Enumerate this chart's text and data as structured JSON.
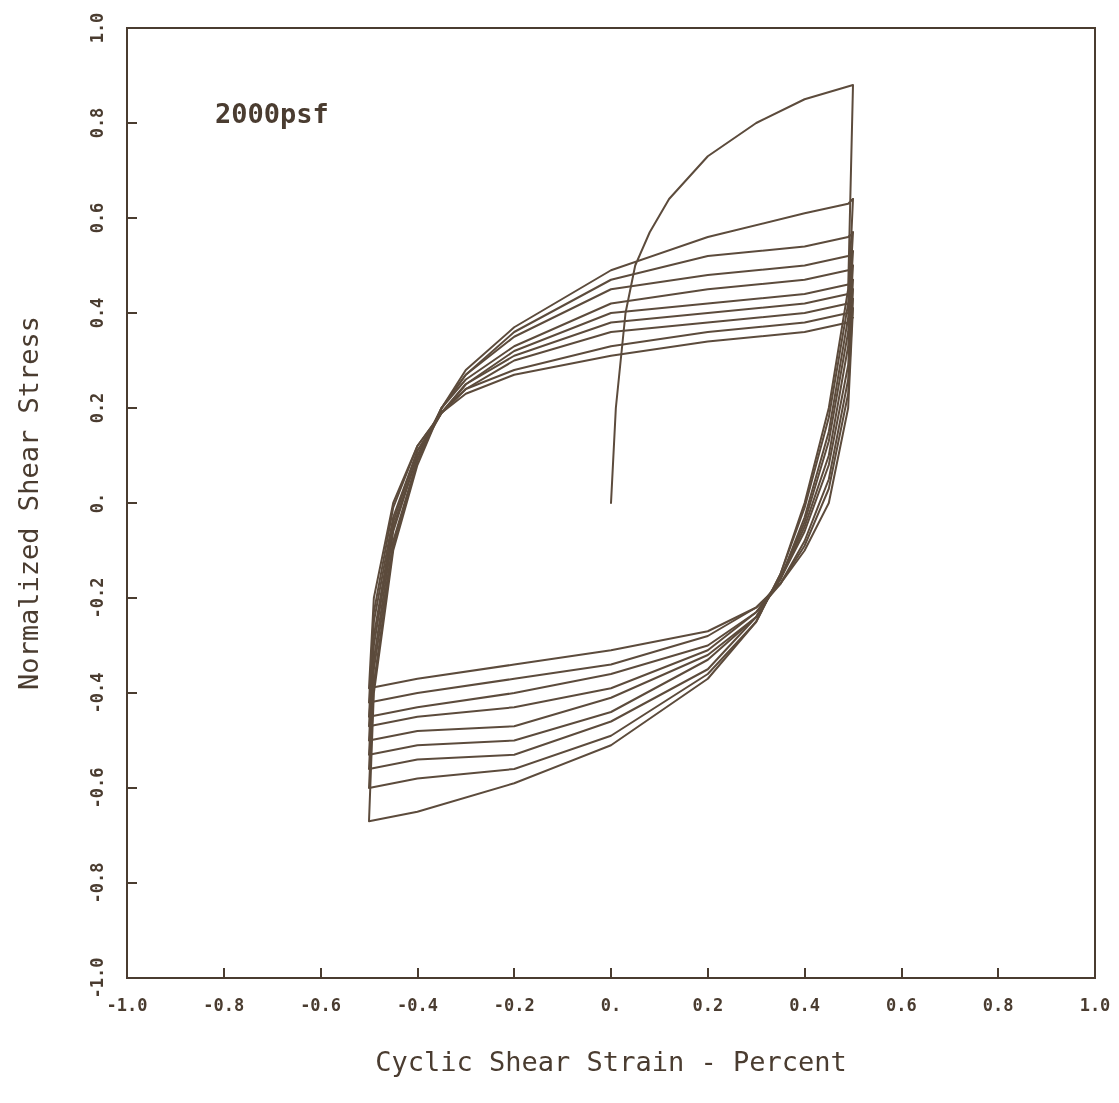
{
  "chart_data": {
    "type": "line",
    "xlabel": "Cyclic Shear Strain - Percent",
    "ylabel": "Normalized Shear Stress",
    "annotations": [
      "2000psf"
    ],
    "xlim": [
      -1,
      1
    ],
    "ylim": [
      -1,
      1
    ],
    "xticks": [
      {
        "value": -1,
        "label": "-1.0"
      },
      {
        "value": -0.8,
        "label": "-0.8"
      },
      {
        "value": -0.6,
        "label": "-0.6"
      },
      {
        "value": -0.4,
        "label": "-0.4"
      },
      {
        "value": -0.2,
        "label": "-0.2"
      },
      {
        "value": 0,
        "label": "0."
      },
      {
        "value": 0.2,
        "label": "0.2"
      },
      {
        "value": 0.4,
        "label": "0.4"
      },
      {
        "value": 0.6,
        "label": "0.6"
      },
      {
        "value": 0.8,
        "label": "0.8"
      },
      {
        "value": 1,
        "label": "1.0"
      }
    ],
    "yticks": [
      {
        "value": -1,
        "label": "-1.0"
      },
      {
        "value": -0.8,
        "label": "-0.8"
      },
      {
        "value": -0.6,
        "label": "-0.6"
      },
      {
        "value": -0.4,
        "label": "-0.4"
      },
      {
        "value": -0.2,
        "label": "-0.2"
      },
      {
        "value": 0,
        "label": "0."
      },
      {
        "value": 0.2,
        "label": "0.2"
      },
      {
        "value": 0.4,
        "label": "0.4"
      },
      {
        "value": 0.6,
        "label": "0.6"
      },
      {
        "value": 0.8,
        "label": "0.8"
      },
      {
        "value": 1,
        "label": "1.0"
      }
    ],
    "grid": false,
    "series": [
      {
        "color": "#5c4b3c",
        "x": [
          0,
          0.005,
          0.01,
          0.02,
          0.03,
          0.05,
          0.08,
          0.12,
          0.2,
          0.3,
          0.4,
          0.5,
          0.49,
          0.45,
          0.4,
          0.35,
          0.3,
          0.2,
          0,
          -0.2,
          -0.4,
          -0.5,
          -0.49,
          -0.45,
          -0.4,
          -0.35,
          -0.3,
          -0.2,
          0,
          0.2,
          0.4,
          0.49,
          0.5
        ],
        "values": [
          0,
          0.1,
          0.2,
          0.3,
          0.4,
          0.5,
          0.57,
          0.64,
          0.73,
          0.8,
          0.85,
          0.88,
          0.45,
          0.2,
          0,
          -0.15,
          -0.25,
          -0.37,
          -0.51,
          -0.59,
          -0.65,
          -0.67,
          -0.4,
          -0.1,
          0.08,
          0.2,
          0.28,
          0.37,
          0.49,
          0.56,
          0.61,
          0.63,
          0.64
        ]
      },
      {
        "color": "#5c4b3c",
        "x": [
          0.5,
          0.49,
          0.45,
          0.4,
          0.35,
          0.3,
          0.2,
          0,
          -0.2,
          -0.4,
          -0.5,
          -0.49,
          -0.45,
          -0.4,
          -0.35,
          -0.3,
          -0.2,
          0,
          0.2,
          0.4,
          0.49,
          0.5
        ],
        "values": [
          0.64,
          0.42,
          0.18,
          -0.01,
          -0.15,
          -0.25,
          -0.36,
          -0.49,
          -0.56,
          -0.58,
          -0.6,
          -0.38,
          -0.09,
          0.09,
          0.2,
          0.27,
          0.36,
          0.47,
          0.52,
          0.54,
          0.56,
          0.57
        ]
      },
      {
        "color": "#5c4b3c",
        "x": [
          0.5,
          0.49,
          0.45,
          0.4,
          0.35,
          0.3,
          0.2,
          0,
          -0.2,
          -0.4,
          -0.5,
          -0.49,
          -0.45,
          -0.4,
          -0.35,
          -0.3,
          -0.2,
          0,
          0.2,
          0.4,
          0.49,
          0.5
        ],
        "values": [
          0.57,
          0.39,
          0.15,
          -0.03,
          -0.16,
          -0.24,
          -0.35,
          -0.46,
          -0.53,
          -0.54,
          -0.56,
          -0.35,
          -0.08,
          0.09,
          0.2,
          0.27,
          0.35,
          0.45,
          0.48,
          0.5,
          0.52,
          0.53
        ]
      },
      {
        "color": "#5c4b3c",
        "x": [
          0.5,
          0.49,
          0.45,
          0.4,
          0.35,
          0.3,
          0.2,
          0,
          -0.2,
          -0.4,
          -0.5,
          -0.49,
          -0.45,
          -0.4,
          -0.35,
          -0.3,
          -0.2,
          0,
          0.2,
          0.4,
          0.49,
          0.5
        ],
        "values": [
          0.53,
          0.36,
          0.13,
          -0.04,
          -0.16,
          -0.24,
          -0.33,
          -0.44,
          -0.5,
          -0.51,
          -0.53,
          -0.33,
          -0.06,
          0.1,
          0.2,
          0.26,
          0.33,
          0.42,
          0.45,
          0.47,
          0.49,
          0.5
        ]
      },
      {
        "color": "#5c4b3c",
        "x": [
          0.5,
          0.49,
          0.45,
          0.4,
          0.35,
          0.3,
          0.2,
          0,
          -0.2,
          -0.4,
          -0.5,
          -0.49,
          -0.45,
          -0.4,
          -0.35,
          -0.3,
          -0.2,
          0,
          0.2,
          0.4,
          0.49,
          0.5
        ],
        "values": [
          0.5,
          0.33,
          0.1,
          -0.05,
          -0.16,
          -0.24,
          -0.32,
          -0.41,
          -0.47,
          -0.48,
          -0.5,
          -0.3,
          -0.05,
          0.1,
          0.19,
          0.25,
          0.32,
          0.4,
          0.42,
          0.44,
          0.46,
          0.47
        ]
      },
      {
        "color": "#5c4b3c",
        "x": [
          0.5,
          0.49,
          0.45,
          0.4,
          0.35,
          0.3,
          0.2,
          0,
          -0.2,
          -0.4,
          -0.5,
          -0.49,
          -0.45,
          -0.4,
          -0.35,
          -0.3,
          -0.2,
          0,
          0.2,
          0.4,
          0.49,
          0.5
        ],
        "values": [
          0.47,
          0.29,
          0.08,
          -0.06,
          -0.16,
          -0.23,
          -0.31,
          -0.39,
          -0.43,
          -0.45,
          -0.47,
          -0.28,
          -0.04,
          0.11,
          0.19,
          0.25,
          0.31,
          0.38,
          0.4,
          0.42,
          0.44,
          0.45
        ]
      },
      {
        "color": "#5c4b3c",
        "x": [
          0.5,
          0.49,
          0.45,
          0.4,
          0.35,
          0.3,
          0.2,
          0,
          -0.2,
          -0.4,
          -0.5,
          -0.49,
          -0.45,
          -0.4,
          -0.35,
          -0.3,
          -0.2,
          0,
          0.2,
          0.4,
          0.49,
          0.5
        ],
        "values": [
          0.45,
          0.26,
          0.05,
          -0.08,
          -0.17,
          -0.23,
          -0.3,
          -0.36,
          -0.4,
          -0.43,
          -0.45,
          -0.25,
          -0.03,
          0.11,
          0.19,
          0.24,
          0.3,
          0.36,
          0.38,
          0.4,
          0.42,
          0.43
        ]
      },
      {
        "color": "#5c4b3c",
        "x": [
          0.5,
          0.49,
          0.45,
          0.4,
          0.35,
          0.3,
          0.2,
          0,
          -0.2,
          -0.4,
          -0.5,
          -0.49,
          -0.45,
          -0.4,
          -0.35,
          -0.3,
          -0.2,
          0,
          0.2,
          0.4,
          0.49,
          0.5
        ],
        "values": [
          0.43,
          0.23,
          0.03,
          -0.09,
          -0.17,
          -0.22,
          -0.28,
          -0.34,
          -0.37,
          -0.4,
          -0.42,
          -0.23,
          -0.01,
          0.12,
          0.19,
          0.24,
          0.28,
          0.33,
          0.36,
          0.38,
          0.4,
          0.41
        ]
      },
      {
        "color": "#5c4b3c",
        "x": [
          0.5,
          0.49,
          0.45,
          0.4,
          0.35,
          0.3,
          0.2,
          0,
          -0.2,
          -0.4,
          -0.5,
          -0.49,
          -0.45,
          -0.4,
          -0.35,
          -0.3,
          -0.2,
          0,
          0.2,
          0.4,
          0.49,
          0.5
        ],
        "values": [
          0.41,
          0.2,
          0,
          -0.1,
          -0.17,
          -0.22,
          -0.27,
          -0.31,
          -0.34,
          -0.37,
          -0.39,
          -0.2,
          0,
          0.12,
          0.19,
          0.23,
          0.27,
          0.31,
          0.34,
          0.36,
          0.38,
          0.39
        ]
      }
    ]
  }
}
